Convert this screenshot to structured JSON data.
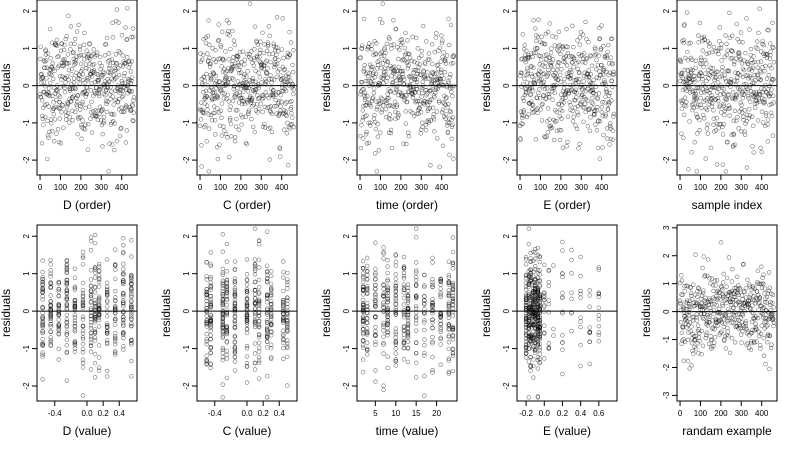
{
  "chart_data": [
    {
      "type": "scatter",
      "xlabel": "D (order)",
      "ylabel": "residuals",
      "xlim": [
        -15,
        475
      ],
      "ylim": [
        -2.4,
        2.3
      ],
      "xticks": [
        "0",
        "100",
        "200",
        "300",
        "400"
      ],
      "yticks": [
        "-2",
        "-1",
        "0",
        "1",
        "2"
      ],
      "x_kind": "index",
      "hline": 0
    },
    {
      "type": "scatter",
      "xlabel": "C (order)",
      "ylabel": "residuals",
      "xlim": [
        -15,
        475
      ],
      "ylim": [
        -2.4,
        2.3
      ],
      "xticks": [
        "0",
        "100",
        "200",
        "300",
        "400"
      ],
      "yticks": [
        "-2",
        "-1",
        "0",
        "1",
        "2"
      ],
      "x_kind": "index",
      "hline": 0
    },
    {
      "type": "scatter",
      "xlabel": "time (order)",
      "ylabel": "residuals",
      "xlim": [
        -15,
        475
      ],
      "ylim": [
        -2.4,
        2.3
      ],
      "xticks": [
        "0",
        "100",
        "200",
        "300",
        "400"
      ],
      "yticks": [
        "-2",
        "-1",
        "0",
        "1",
        "2"
      ],
      "x_kind": "index",
      "hline": 0
    },
    {
      "type": "scatter",
      "xlabel": "E (order)",
      "ylabel": "residuals",
      "xlim": [
        -15,
        475
      ],
      "ylim": [
        -2.4,
        2.3
      ],
      "xticks": [
        "0",
        "100",
        "200",
        "300",
        "400"
      ],
      "yticks": [
        "-2",
        "-1",
        "0",
        "1",
        "2"
      ],
      "x_kind": "index",
      "hline": 0
    },
    {
      "type": "scatter",
      "xlabel": "sample index",
      "ylabel": "residuals",
      "xlim": [
        -15,
        475
      ],
      "ylim": [
        -2.4,
        2.3
      ],
      "xticks": [
        "0",
        "100",
        "200",
        "300",
        "400"
      ],
      "yticks": [
        "-2",
        "-1",
        "0",
        "1",
        "2"
      ],
      "x_kind": "index",
      "hline": 0
    },
    {
      "type": "scatter",
      "xlabel": "D (value)",
      "ylabel": "residuals",
      "xlim": [
        -0.62,
        0.62
      ],
      "ylim": [
        -2.4,
        2.3
      ],
      "xticks": [
        "-0.4",
        "0.0",
        "0.2",
        "0.4"
      ],
      "yticks": [
        "-2",
        "-1",
        "0",
        "1",
        "2"
      ],
      "x_kind": "discrete",
      "x_levels": [
        -0.55,
        -0.45,
        -0.35,
        -0.25,
        -0.15,
        -0.05,
        0.05,
        0.1,
        0.15,
        0.25,
        0.35,
        0.45,
        0.55
      ],
      "hline": 0
    },
    {
      "type": "scatter",
      "xlabel": "C (value)",
      "ylabel": "residuals",
      "xlim": [
        -0.62,
        0.62
      ],
      "ylim": [
        -2.4,
        2.3
      ],
      "xticks": [
        "-0.4",
        "0.0",
        "0.2",
        "0.4"
      ],
      "yticks": [
        "-2",
        "-1",
        "0",
        "1",
        "2"
      ],
      "x_kind": "discrete",
      "x_levels": [
        -0.5,
        -0.45,
        -0.3,
        -0.25,
        -0.15,
        0,
        0.1,
        0.15,
        0.25,
        0.3,
        0.45,
        0.5
      ],
      "hline": 0
    },
    {
      "type": "scatter",
      "xlabel": "time (value)",
      "ylabel": "residuals",
      "xlim": [
        0.5,
        25
      ],
      "ylim": [
        -2.4,
        2.3
      ],
      "xticks": [
        "5",
        "10",
        "15",
        "20"
      ],
      "yticks": [
        "-2",
        "-1",
        "0",
        "1",
        "2"
      ],
      "x_kind": "discrete",
      "x_levels": [
        2,
        3,
        5,
        7,
        8,
        10,
        12,
        13,
        15,
        17,
        19,
        21,
        23,
        24
      ],
      "hline": 0
    },
    {
      "type": "scatter",
      "xlabel": "E (value)",
      "ylabel": "residuals",
      "xlim": [
        -0.3,
        0.8
      ],
      "ylim": [
        -2.4,
        2.3
      ],
      "xticks": [
        "-0.2",
        "0.0",
        "0.2",
        "0.4",
        "0.6"
      ],
      "yticks": [
        "-2",
        "-1",
        "0",
        "1",
        "2"
      ],
      "x_kind": "skewed",
      "x_levels": [
        -0.2,
        -0.17,
        -0.15,
        -0.12,
        -0.1,
        -0.07,
        -0.05,
        0.0,
        0.05,
        0.1,
        0.2,
        0.3,
        0.4,
        0.5,
        0.6
      ],
      "hline": 0
    },
    {
      "type": "scatter",
      "xlabel": "randam example",
      "ylabel": "residuals",
      "xlim": [
        -15,
        475
      ],
      "ylim": [
        -3.2,
        3.1
      ],
      "xticks": [
        "0",
        "100",
        "200",
        "300",
        "400"
      ],
      "yticks": [
        "-3",
        "-2",
        "-1",
        "0",
        "1",
        "2",
        "3"
      ],
      "x_kind": "index",
      "hline": 0
    }
  ]
}
